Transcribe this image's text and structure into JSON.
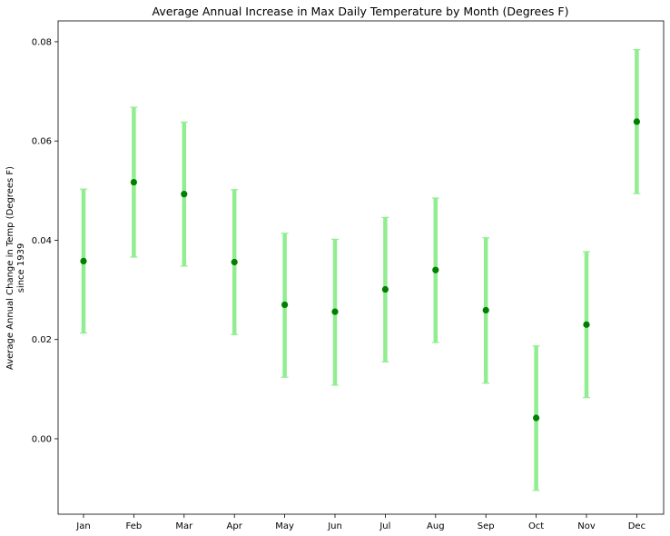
{
  "chart_data": {
    "type": "scatter",
    "title": "Average Annual Increase in Max Daily Temperature by Month (Degrees F)",
    "xlabel": "",
    "ylabel_lines": [
      "Average Annual Change in Temp (Degrees F)",
      "since 1939"
    ],
    "categories": [
      "Jan",
      "Feb",
      "Mar",
      "Apr",
      "May",
      "Jun",
      "Jul",
      "Aug",
      "Sep",
      "Oct",
      "Nov",
      "Dec"
    ],
    "values": [
      0.0358,
      0.0517,
      0.0493,
      0.0356,
      0.027,
      0.0256,
      0.0301,
      0.034,
      0.0259,
      0.0042,
      0.023,
      0.0639
    ],
    "error_low": [
      0.0213,
      0.0366,
      0.0348,
      0.021,
      0.0124,
      0.0108,
      0.0155,
      0.0194,
      0.0112,
      -0.0104,
      0.0083,
      0.0494
    ],
    "error_high": [
      0.0503,
      0.0668,
      0.0638,
      0.0502,
      0.0414,
      0.0402,
      0.0446,
      0.0485,
      0.0405,
      0.0187,
      0.0377,
      0.0784
    ],
    "yticks": [
      0.0,
      0.02,
      0.04,
      0.06,
      0.08
    ],
    "ytick_labels": [
      "0.00",
      "0.02",
      "0.04",
      "0.06",
      "0.08"
    ],
    "ylim": [
      -0.0152,
      0.0842
    ],
    "grid": false,
    "marker_color": "#008000",
    "errorbar_color": "#90ee90"
  }
}
